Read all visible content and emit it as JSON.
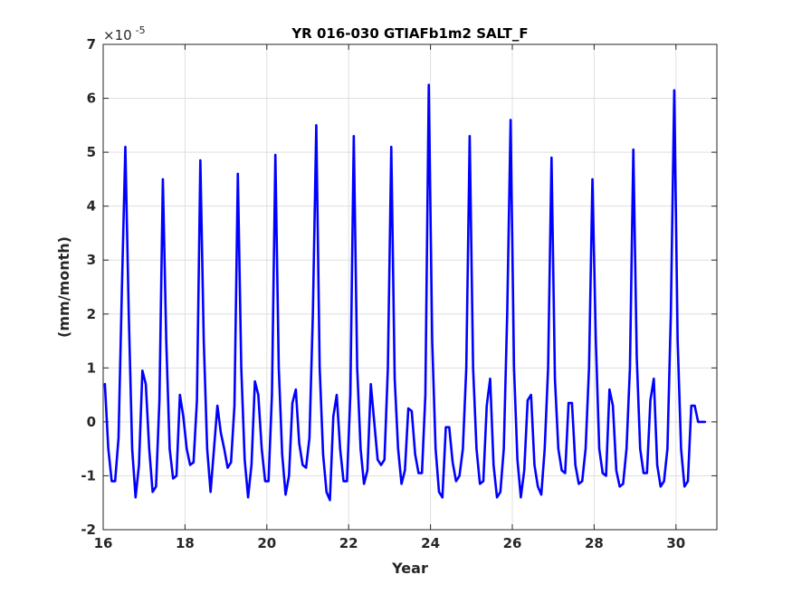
{
  "chart_data": {
    "type": "line",
    "title": "YR 016-030 GTIAFb1m2 SALT_F",
    "xlabel": "Year",
    "ylabel": "(mm/month)",
    "y_exponent_label": "×10",
    "y_exponent_power": "-5",
    "xlim": [
      16,
      31
    ],
    "ylim": [
      -2,
      7
    ],
    "x_ticks": [
      16,
      18,
      20,
      22,
      24,
      26,
      28,
      30
    ],
    "y_ticks": [
      -2,
      -1,
      0,
      1,
      2,
      3,
      4,
      5,
      6,
      7
    ],
    "x_tick_labels": [
      "16",
      "18",
      "20",
      "22",
      "24",
      "26",
      "28",
      "30"
    ],
    "y_tick_labels": [
      "-2",
      "-1",
      "0",
      "1",
      "2",
      "3",
      "4",
      "5",
      "6",
      "7"
    ],
    "grid": true,
    "series_color": "#0000ff",
    "series": [
      {
        "x": [
          16.0417,
          16.125,
          16.2083,
          16.2917,
          16.375,
          16.4583,
          16.5417,
          16.625,
          16.7083,
          16.7917,
          16.875,
          16.9583,
          17.0417,
          17.125,
          17.2083,
          17.2917,
          17.375,
          17.4583,
          17.5417,
          17.625,
          17.7083,
          17.7917,
          17.875,
          17.9583,
          18.0417,
          18.125,
          18.2083,
          18.2917,
          18.375,
          18.4583,
          18.5417,
          18.625,
          18.7083,
          18.7917,
          18.875,
          18.9583,
          19.0417,
          19.125,
          19.2083,
          19.2917,
          19.375,
          19.4583,
          19.5417,
          19.625,
          19.7083,
          19.7917,
          19.875,
          19.9583,
          20.0417,
          20.125,
          20.2083,
          20.2917,
          20.375,
          20.4583,
          20.5417,
          20.625,
          20.7083,
          20.7917,
          20.875,
          20.9583,
          21.0417,
          21.125,
          21.2083,
          21.2917,
          21.375,
          21.4583,
          21.5417,
          21.625,
          21.7083,
          21.7917,
          21.875,
          21.9583,
          22.0417,
          22.125,
          22.2083,
          22.2917,
          22.375,
          22.4583,
          22.5417,
          22.625,
          22.7083,
          22.7917,
          22.875,
          22.9583,
          23.0417,
          23.125,
          23.2083,
          23.2917,
          23.375,
          23.4583,
          23.5417,
          23.625,
          23.7083,
          23.7917,
          23.875,
          23.9583,
          24.0417,
          24.125,
          24.2083,
          24.2917,
          24.375,
          24.4583,
          24.5417,
          24.625,
          24.7083,
          24.7917,
          24.875,
          24.9583,
          25.0417,
          25.125,
          25.2083,
          25.2917,
          25.375,
          25.4583,
          25.5417,
          25.625,
          25.7083,
          25.7917,
          25.875,
          25.9583,
          26.0417,
          26.125,
          26.2083,
          26.2917,
          26.375,
          26.4583,
          26.5417,
          26.625,
          26.7083,
          26.7917,
          26.875,
          26.9583,
          27.0417,
          27.125,
          27.2083,
          27.2917,
          27.375,
          27.4583,
          27.5417,
          27.625,
          27.7083,
          27.7917,
          27.875,
          27.9583,
          28.0417,
          28.125,
          28.2083,
          28.2917,
          28.375,
          28.4583,
          28.5417,
          28.625,
          28.7083,
          28.7917,
          28.875,
          28.9583,
          29.0417,
          29.125,
          29.2083,
          29.2917,
          29.375,
          29.4583,
          29.5417,
          29.625,
          29.7083,
          29.7917,
          29.875,
          29.9583,
          30.0417,
          30.125,
          30.2083,
          30.2917,
          30.375,
          30.4583,
          30.5417,
          30.625,
          30.7083,
          30.7917,
          30.875,
          30.9583
        ],
        "values": [
          0.7,
          -0.5,
          -1.1,
          -1.1,
          -0.3,
          2.5,
          5.1,
          2.0,
          -0.5,
          -1.4,
          -0.8,
          0.95,
          0.7,
          -0.5,
          -1.3,
          -1.2,
          0.4,
          4.5,
          1.5,
          -0.5,
          -1.05,
          -1.0,
          0.5,
          0.1,
          -0.5,
          -0.8,
          -0.75,
          0.4,
          4.85,
          1.5,
          -0.5,
          -1.3,
          -0.5,
          0.3,
          -0.2,
          -0.5,
          -0.85,
          -0.75,
          0.3,
          4.6,
          1.0,
          -0.7,
          -1.4,
          -0.8,
          0.75,
          0.5,
          -0.5,
          -1.1,
          -1.1,
          0.5,
          4.95,
          1.0,
          -0.6,
          -1.35,
          -1.0,
          0.35,
          0.6,
          -0.4,
          -0.8,
          -0.85,
          -0.3,
          2.0,
          5.5,
          1.0,
          -0.6,
          -1.3,
          -1.45,
          0.1,
          0.5,
          -0.5,
          -1.1,
          -1.1,
          0.5,
          5.3,
          1.0,
          -0.5,
          -1.15,
          -0.9,
          0.7,
          0.0,
          -0.7,
          -0.8,
          -0.7,
          1.0,
          5.1,
          0.8,
          -0.5,
          -1.15,
          -0.9,
          0.25,
          0.2,
          -0.6,
          -0.95,
          -0.95,
          0.5,
          6.25,
          1.5,
          -0.5,
          -1.3,
          -1.4,
          -0.1,
          -0.1,
          -0.75,
          -1.1,
          -1.0,
          -0.5,
          1.0,
          5.3,
          1.0,
          -0.5,
          -1.15,
          -1.1,
          0.3,
          0.8,
          -0.8,
          -1.4,
          -1.3,
          -0.5,
          2.0,
          5.6,
          1.0,
          -0.7,
          -1.4,
          -0.9,
          0.4,
          0.5,
          -0.8,
          -1.2,
          -1.35,
          -0.5,
          1.0,
          4.9,
          0.8,
          -0.5,
          -0.9,
          -0.95,
          0.35,
          0.35,
          -0.8,
          -1.15,
          -1.1,
          -0.5,
          1.0,
          4.5,
          1.5,
          -0.5,
          -0.95,
          -1.0,
          0.6,
          0.3,
          -0.9,
          -1.2,
          -1.15,
          -0.5,
          1.0,
          5.05,
          1.2,
          -0.5,
          -0.95,
          -0.95,
          0.4,
          0.8,
          -0.8,
          -1.2,
          -1.1,
          -0.5,
          2.0,
          6.15,
          1.5,
          -0.5,
          -1.2,
          -1.1,
          0.3,
          0.3,
          0.0,
          0.0,
          0.0,
          0.0,
          0.0,
          0.0
        ]
      }
    ]
  }
}
